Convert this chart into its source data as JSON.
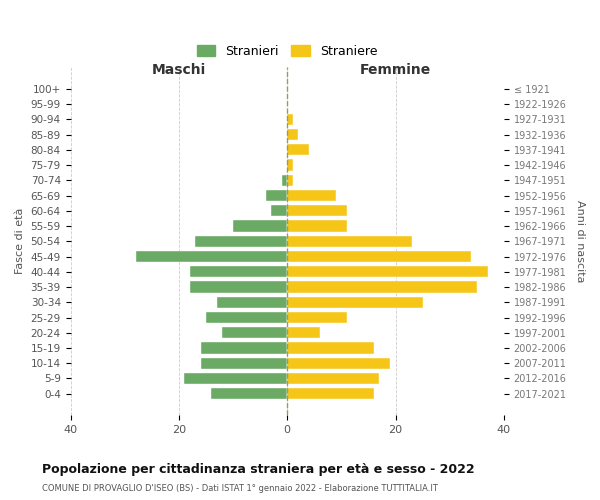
{
  "age_groups": [
    "100+",
    "95-99",
    "90-94",
    "85-89",
    "80-84",
    "75-79",
    "70-74",
    "65-69",
    "60-64",
    "55-59",
    "50-54",
    "45-49",
    "40-44",
    "35-39",
    "30-34",
    "25-29",
    "20-24",
    "15-19",
    "10-14",
    "5-9",
    "0-4"
  ],
  "birth_years": [
    "≤ 1921",
    "1922-1926",
    "1927-1931",
    "1932-1936",
    "1937-1941",
    "1942-1946",
    "1947-1951",
    "1952-1956",
    "1957-1961",
    "1962-1966",
    "1967-1971",
    "1972-1976",
    "1977-1981",
    "1982-1986",
    "1987-1991",
    "1992-1996",
    "1997-2001",
    "2002-2006",
    "2007-2011",
    "2012-2016",
    "2017-2021"
  ],
  "maschi": [
    0,
    0,
    0,
    0,
    0,
    0,
    1,
    4,
    3,
    10,
    17,
    28,
    18,
    18,
    13,
    15,
    12,
    16,
    16,
    19,
    14
  ],
  "femmine": [
    0,
    0,
    1,
    2,
    4,
    1,
    1,
    9,
    11,
    11,
    23,
    34,
    37,
    35,
    25,
    11,
    6,
    16,
    19,
    17,
    16
  ],
  "maschi_color": "#6aaa64",
  "femmine_color": "#f5c518",
  "background_color": "#ffffff",
  "grid_color": "#cccccc",
  "dashed_color": "#999966",
  "title": "Popolazione per cittadinanza straniera per età e sesso - 2022",
  "subtitle": "COMUNE DI PROVAGLIO D'ISEO (BS) - Dati ISTAT 1° gennaio 2022 - Elaborazione TUTTITALIA.IT",
  "xlabel_left": "Maschi",
  "xlabel_right": "Femmine",
  "ylabel_left": "Fasce di età",
  "ylabel_right": "Anni di nascita",
  "legend_maschi": "Stranieri",
  "legend_femmine": "Straniere",
  "xlim": 40
}
